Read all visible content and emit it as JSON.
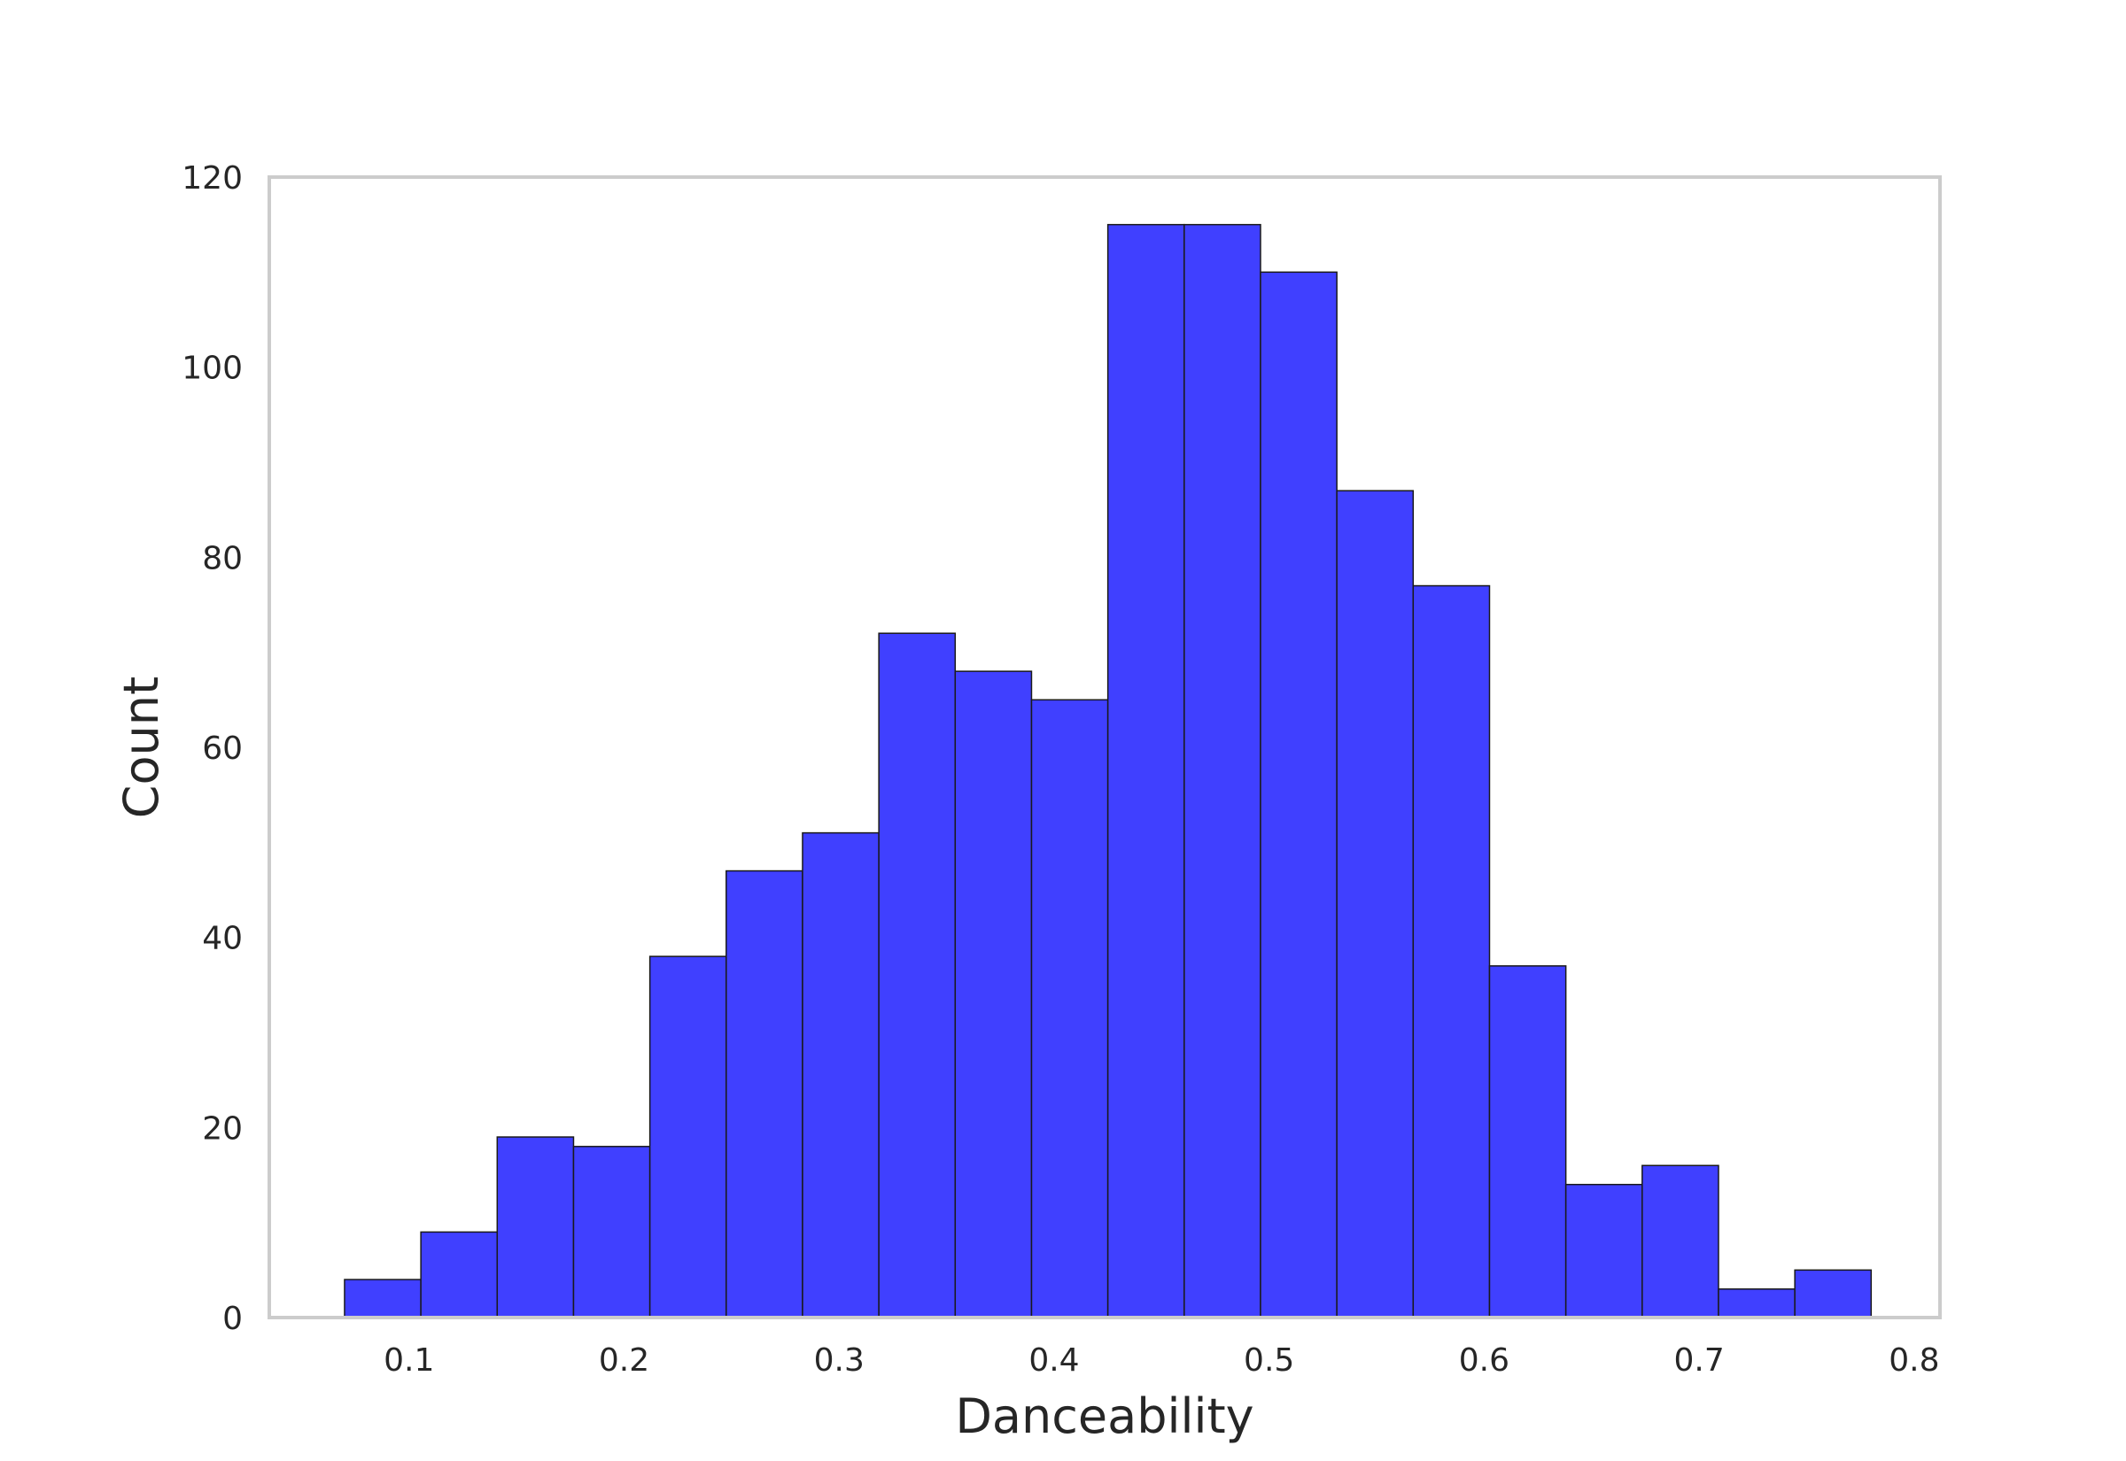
{
  "chart_data": {
    "type": "bar",
    "title": "",
    "xlabel": "Danceability",
    "ylabel": "Count",
    "xlim": [
      0.035,
      0.812
    ],
    "ylim": [
      0,
      120
    ],
    "x_ticks": [
      "0.1",
      "0.2",
      "0.3",
      "0.4",
      "0.5",
      "0.6",
      "0.7",
      "0.8"
    ],
    "y_ticks": [
      "0",
      "20",
      "40",
      "60",
      "80",
      "100",
      "120"
    ],
    "bin_edges": [
      0.07,
      0.1055,
      0.141,
      0.1765,
      0.212,
      0.2475,
      0.283,
      0.3185,
      0.354,
      0.3895,
      0.425,
      0.4605,
      0.496,
      0.5315,
      0.567,
      0.6025,
      0.638,
      0.6735,
      0.709,
      0.7445,
      0.78
    ],
    "values": [
      4,
      9,
      19,
      18,
      38,
      47,
      51,
      72,
      68,
      65,
      115,
      115,
      110,
      87,
      77,
      37,
      14,
      16,
      3,
      5
    ],
    "grid": false,
    "colors": {
      "bar_fill": "#4040ff",
      "bar_edge": "#1a1a1a",
      "frame": "#cccccc",
      "text": "#262626"
    }
  }
}
